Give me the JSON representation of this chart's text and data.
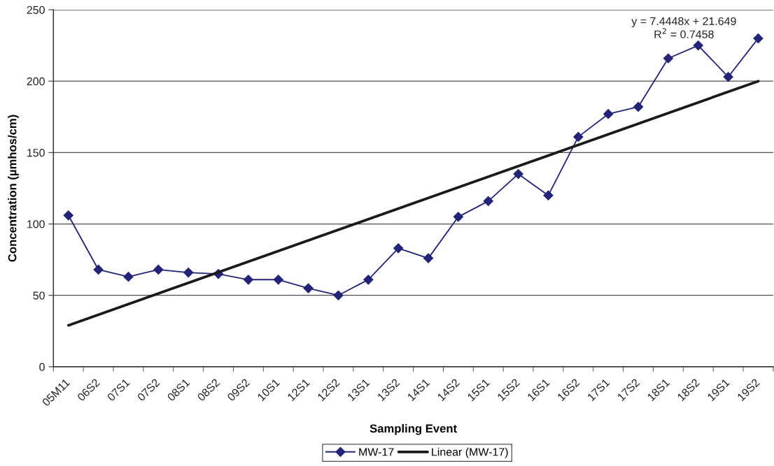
{
  "chart_data": {
    "type": "line",
    "xlabel": "Sampling Event",
    "ylabel": "Concentration (µmhos/cm)",
    "categories": [
      "05M11",
      "06S2",
      "07S1",
      "07S2",
      "08S1",
      "08S2",
      "09S2",
      "10S1",
      "12S1",
      "12S2",
      "13S1",
      "13S2",
      "14S1",
      "14S2",
      "15S1",
      "15S2",
      "16S1",
      "16S2",
      "17S1",
      "17S2",
      "18S1",
      "18S2",
      "19S1",
      "19S2"
    ],
    "series": [
      {
        "name": "MW-17",
        "color": "#232377",
        "values": [
          106,
          68,
          63,
          68,
          66,
          65,
          61,
          61,
          55,
          50,
          61,
          83,
          76,
          105,
          116,
          135,
          120,
          161,
          177,
          182,
          216,
          225,
          203,
          230
        ]
      },
      {
        "name": "Linear (MW-17)",
        "color": "#1a1a1a",
        "marker": "none",
        "x": [
          "05M11",
          "19S2"
        ],
        "values": [
          29,
          200
        ]
      }
    ],
    "ylim": [
      0,
      250
    ],
    "yticks": [
      0,
      50,
      100,
      150,
      200,
      250
    ],
    "grid": "y",
    "legend": "bottom",
    "marker": "diamond",
    "line_style": "solid",
    "annotations": [
      "y = 7.4448x + 21.649\nR$^{2}$ = 0.7458"
    ]
  }
}
